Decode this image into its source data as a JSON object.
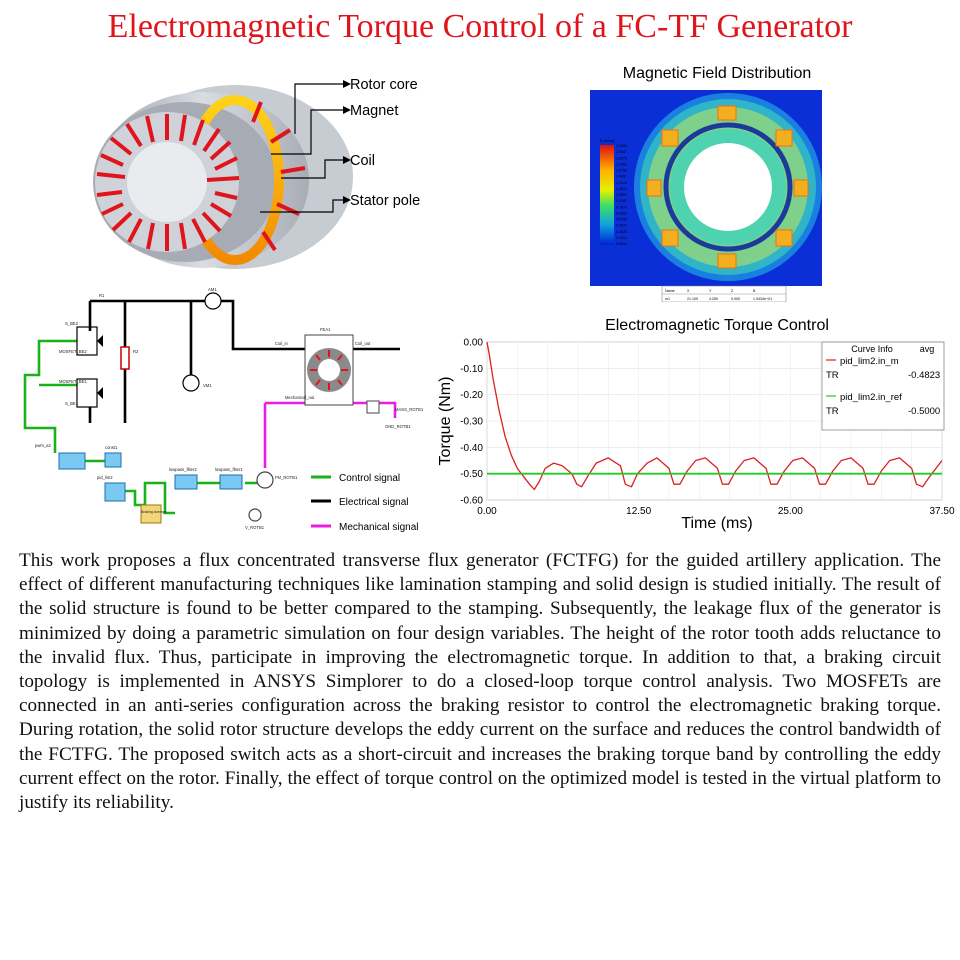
{
  "title": "Electromagnetic Torque Control of a FC-TF Generator",
  "generator_figure": {
    "labels": [
      "Rotor core",
      "Magnet",
      "Coil",
      "Stator pole"
    ]
  },
  "field_figure": {
    "title": "Magnetic Field Distribution",
    "colorbar_title": "B [tesla]",
    "colorbar_ticks": [
      "2.1000",
      "1.9687",
      "1.8375",
      "1.7062",
      "1.5750",
      "1.4437",
      "1.3125",
      "1.1812",
      "1.0500",
      "0.9187",
      "0.7875",
      "0.6562",
      "0.5250",
      "0.3937",
      "0.2625",
      "0.1312",
      "0.0000"
    ],
    "table": {
      "headers": [
        "Name",
        "X",
        "Y",
        "Z",
        "B"
      ],
      "row": [
        "m1",
        "21.109",
        "4.250",
        "0.000",
        "1.9434e+01"
      ]
    }
  },
  "circuit_figure": {
    "components": [
      "R1",
      "S_BE2",
      "MOSFET_BE2",
      "MOSFET_BE1",
      "S_BE1",
      "R2",
      "AM1",
      "VM1",
      "FEA1",
      "Coil_in",
      "Coil_out",
      "pwm_a2",
      "const1",
      "pid_lim2",
      "lowpass_filter2",
      "lowpass_filter1",
      "Braking Average",
      "FM_ROTB1",
      "V_ROTB1",
      "Mechanical_out",
      "MASS_ROTB1",
      "GND_ROTB1"
    ],
    "legend": [
      {
        "label": "Control signal",
        "color": "#19b219"
      },
      {
        "label": "Electrical signal",
        "color": "#000000"
      },
      {
        "label": "Mechanical signal",
        "color": "#e81ee0"
      }
    ]
  },
  "torque_figure": {
    "title": "Electromagnetic Torque Control",
    "legend_header": [
      "Curve Info",
      "avg"
    ],
    "legend_entries": [
      {
        "name": "pid_lim2.in_m",
        "tag": "TR",
        "avg": "-0.4823",
        "color": "#dd2020"
      },
      {
        "name": "pid_lim2.in_ref",
        "tag": "TR",
        "avg": "-0.5000",
        "color": "#22cc22"
      }
    ]
  },
  "chart_data": {
    "type": "line",
    "title": "Electromagnetic Torque Control",
    "xlabel": "Time (ms)",
    "ylabel": "Torque (Nm)",
    "xlim": [
      0,
      37.5
    ],
    "ylim": [
      -0.6,
      0.0
    ],
    "xticks": [
      "0.00",
      "12.50",
      "25.00",
      "37.50"
    ],
    "yticks": [
      "0.00",
      "-0.10",
      "-0.20",
      "-0.30",
      "-0.40",
      "-0.50",
      "-0.60"
    ],
    "grid": true,
    "legend_position": "top-right",
    "series": [
      {
        "name": "pid_lim2.in_m",
        "color": "#dd2020",
        "x": [
          0.0,
          0.2,
          0.5,
          1.0,
          1.5,
          2.0,
          2.5,
          3.0,
          3.5,
          3.9,
          4.3,
          4.8,
          5.5,
          6.2,
          7.0,
          7.4,
          7.8,
          8.3,
          9.0,
          10.0,
          11.0,
          11.4,
          11.9,
          12.4,
          13.2,
          14.0,
          15.0,
          15.4,
          15.9,
          16.5,
          17.2,
          18.0,
          19.0,
          19.4,
          19.9,
          20.5,
          21.2,
          22.0,
          23.0,
          23.4,
          23.9,
          24.5,
          25.2,
          26.0,
          27.0,
          27.4,
          27.9,
          28.5,
          29.2,
          30.0,
          31.0,
          31.4,
          31.9,
          32.5,
          33.2,
          34.0,
          35.0,
          35.4,
          35.9,
          36.5,
          37.5
        ],
        "y": [
          0.0,
          -0.05,
          -0.14,
          -0.26,
          -0.36,
          -0.43,
          -0.48,
          -0.51,
          -0.54,
          -0.56,
          -0.53,
          -0.48,
          -0.46,
          -0.47,
          -0.5,
          -0.54,
          -0.55,
          -0.51,
          -0.46,
          -0.44,
          -0.47,
          -0.54,
          -0.55,
          -0.5,
          -0.46,
          -0.44,
          -0.48,
          -0.54,
          -0.54,
          -0.49,
          -0.45,
          -0.44,
          -0.48,
          -0.54,
          -0.54,
          -0.49,
          -0.45,
          -0.44,
          -0.48,
          -0.54,
          -0.54,
          -0.49,
          -0.45,
          -0.44,
          -0.48,
          -0.54,
          -0.54,
          -0.49,
          -0.45,
          -0.44,
          -0.48,
          -0.54,
          -0.54,
          -0.49,
          -0.45,
          -0.44,
          -0.48,
          -0.54,
          -0.55,
          -0.51,
          -0.45
        ]
      },
      {
        "name": "pid_lim2.in_ref",
        "color": "#22cc22",
        "x": [
          0.0,
          37.5
        ],
        "y": [
          -0.5,
          -0.5
        ]
      }
    ]
  },
  "abstract": "This work proposes a flux concentrated transverse flux generator (FCTFG) for the guided artillery application. The effect of different manufacturing techniques like lamination stamping and solid design is studied initially. The result of the solid structure is found to be better compared to the stamping. Subsequently, the leakage flux of the generator is minimized by doing a parametric simulation on four design variables. The height of the rotor tooth adds reluctance to the invalid flux. Thus, participate in improving the electromagnetic torque. In addition to that, a braking circuit topology is implemented in ANSYS Simplorer to do a closed-loop torque control analysis. Two MOSFETs are connected in an anti-series configuration across the braking resistor to control the electromagnetic braking torque. During rotation, the solid rotor structure develops the eddy current on the surface and reduces the control bandwidth of the FCTFG. The proposed switch acts as a short-circuit and increases the braking torque band by controlling the eddy current effect on the rotor. Finally, the effect of torque control on the optimized model is tested in the virtual platform to justify its reliability."
}
